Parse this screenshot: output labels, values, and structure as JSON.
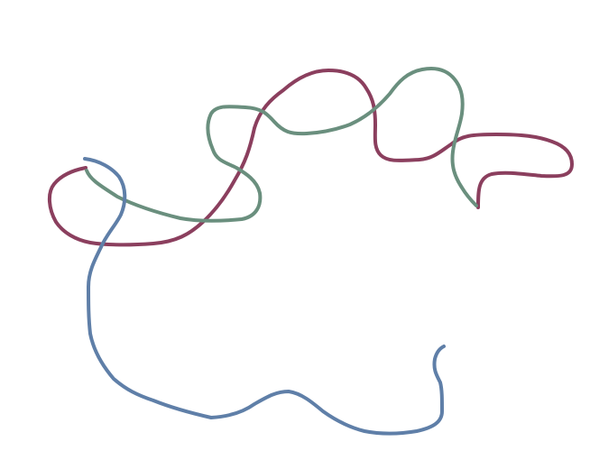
{
  "drawing": {
    "background": "#ffffff",
    "strokes": [
      {
        "id": "maroon-stroke",
        "color": "#8b3f5e"
      },
      {
        "id": "green-stroke",
        "color": "#6a8f7e"
      },
      {
        "id": "blue-stroke",
        "color": "#5f7fa8"
      }
    ]
  }
}
